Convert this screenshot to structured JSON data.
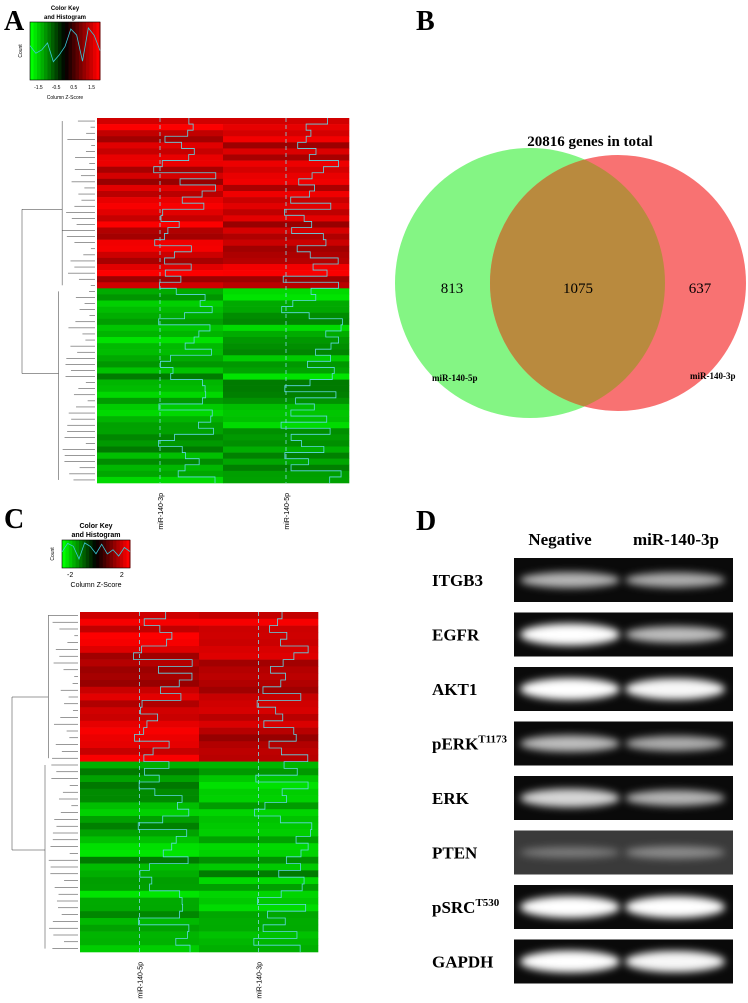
{
  "panel_a": {
    "letter": "A",
    "color_key": {
      "title_lines": [
        "Color Key",
        "and Histogram"
      ],
      "y_label": "Count",
      "x_label": "Column Z-Score",
      "ticks": [
        "-1.5",
        "-0.5",
        "0.5",
        "1.5"
      ]
    },
    "columns": [
      "miR-140-3p",
      "miR-140-5p"
    ]
  },
  "panel_b": {
    "letter": "B",
    "title": "20816 genes in total",
    "left_only": 813,
    "overlap": 1075,
    "right_only": 637,
    "left_set": "miR-140-5p",
    "right_set": "miR-140-3p"
  },
  "panel_c": {
    "letter": "C",
    "color_key": {
      "title_lines": [
        "Color Key",
        "and Histogram"
      ],
      "y_label": "Count",
      "x_label": "Column Z-Score",
      "ticks": [
        "-2",
        "2"
      ]
    },
    "columns": [
      "miR-140-5p",
      "miR-140-3p"
    ]
  },
  "panel_d": {
    "letter": "D",
    "columns": [
      "Negative",
      "miR-140-3p"
    ],
    "rows": [
      {
        "name": "ITGB3"
      },
      {
        "name": "EGFR"
      },
      {
        "name": "AKT1"
      },
      {
        "name": "pERK",
        "sup": "T1173"
      },
      {
        "name": "ERK"
      },
      {
        "name": "PTEN"
      },
      {
        "name": "pSRC",
        "sup": "T530"
      },
      {
        "name": "GAPDH"
      }
    ]
  }
}
